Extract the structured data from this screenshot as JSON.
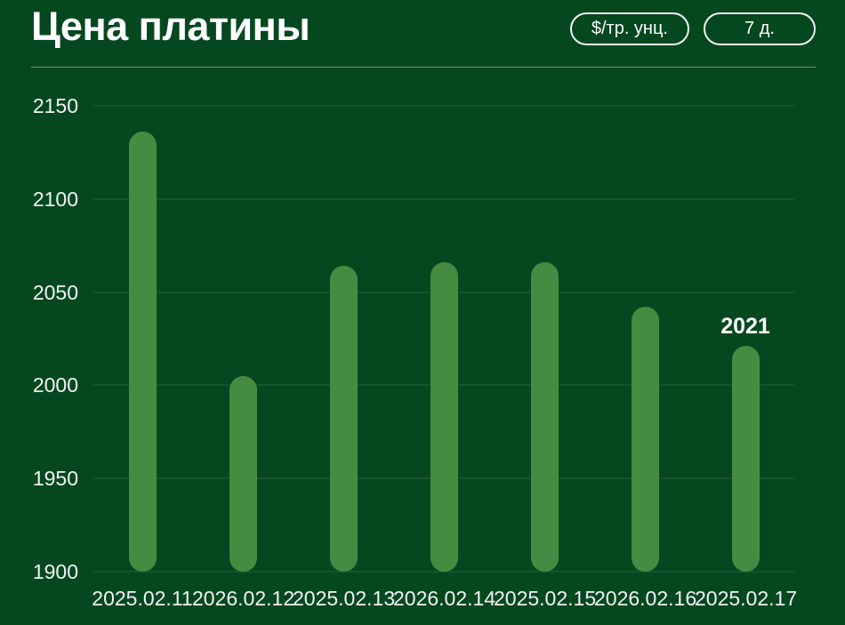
{
  "header": {
    "title": "Цена платины",
    "unit_button_label": "$/тр. унц.",
    "period_button_label": "7 д."
  },
  "chart_data": {
    "type": "bar",
    "title": "Цена платины",
    "unit": "$/тр. унц.",
    "period": "7 д.",
    "categories": [
      "2025.02.11",
      "2026.02.12",
      "2025.02.13",
      "2026.02.14",
      "2025.02.15",
      "2026.02.16",
      "2025.02.17"
    ],
    "values": [
      2136,
      2005,
      2064,
      2066,
      2066,
      2042,
      2021
    ],
    "ylim": [
      1900,
      2150
    ],
    "yticks": [
      2150,
      2100,
      2050,
      2000,
      1950,
      1900
    ],
    "grid": true,
    "legend": false,
    "annotation": {
      "text": "2021",
      "bar_index": 6
    },
    "colors": {
      "background": "#05481f",
      "bar": "#468b42",
      "text": "#f2f2f2",
      "gridline": "rgba(255,255,255,0.07)"
    }
  }
}
